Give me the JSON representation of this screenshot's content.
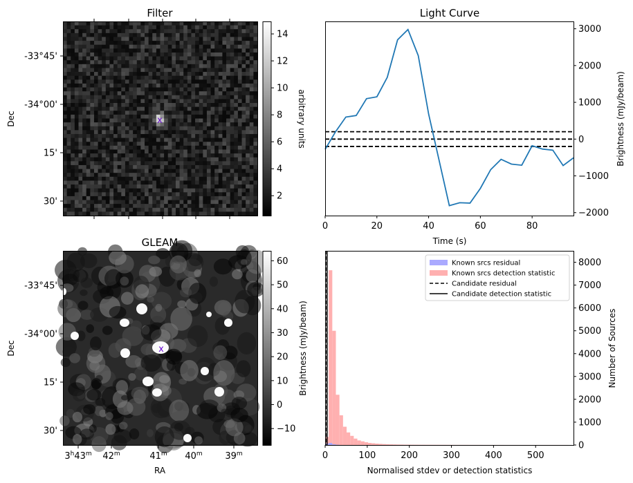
{
  "filter_panel": {
    "title": "Filter",
    "ylabel": "Dec",
    "ytick_labels": [
      "-33°45'",
      "-34°00'",
      "15'",
      "30'"
    ],
    "colorbar": {
      "label": "arbitrary units",
      "ticks": [
        "2",
        "4",
        "6",
        "8",
        "10",
        "12",
        "14"
      ],
      "range": [
        0.5,
        14.9
      ]
    },
    "marker": "x"
  },
  "gleam_panel": {
    "title": "GLEAM",
    "ylabel": "Dec",
    "xlabel": "RA",
    "ytick_labels": [
      "-33°45'",
      "-34°00'",
      "15'",
      "30'"
    ],
    "xtick_labels": [
      {
        "h": "3",
        "hs": "h",
        "m": "43",
        "ms": "m"
      },
      {
        "h": "",
        "hs": "",
        "m": "42",
        "ms": "m"
      },
      {
        "h": "",
        "hs": "",
        "m": "41",
        "ms": "m"
      },
      {
        "h": "",
        "hs": "",
        "m": "40",
        "ms": "m"
      },
      {
        "h": "",
        "hs": "",
        "m": "39",
        "ms": "m"
      }
    ],
    "colorbar": {
      "label": "Brightness (mJy/beam)",
      "ticks": [
        "−10",
        "0",
        "10",
        "20",
        "30",
        "40",
        "50",
        "60"
      ],
      "range": [
        -17,
        64
      ]
    },
    "marker": "x"
  },
  "chart_data": [
    {
      "type": "line",
      "title": "Light Curve",
      "xlabel": "Time (s)",
      "ylabel": "Brightness (mJy/beam)",
      "xlim": [
        0,
        96
      ],
      "ylim": [
        -2080,
        3200
      ],
      "xticks": [
        0,
        20,
        40,
        60,
        80
      ],
      "yticks": [
        3000,
        2000,
        1000,
        0,
        -1000,
        -2000
      ],
      "ytick_labels": [
        "3000",
        "2000",
        "1000",
        "0",
        "−1000",
        "−2000"
      ],
      "series": [
        {
          "x": [
            0,
            4,
            8,
            12,
            16,
            20,
            24,
            28,
            32,
            36,
            40,
            44,
            48,
            52,
            56,
            60,
            64,
            68,
            72,
            76,
            80,
            84,
            88,
            92,
            96
          ],
          "y": [
            -280,
            200,
            600,
            640,
            1100,
            1150,
            1680,
            2700,
            2980,
            2270,
            680,
            -560,
            -1810,
            -1730,
            -1740,
            -1340,
            -830,
            -550,
            -680,
            -710,
            -180,
            -270,
            -300,
            -720,
            -510
          ],
          "color": "#1f77b4"
        }
      ],
      "hlines": [
        200,
        0,
        -200
      ],
      "hline_style": "dashed black"
    },
    {
      "type": "histogram",
      "xlabel": "Normalised stdev or detection statistics",
      "ylabel_left": "Brightness (mJy/beam)",
      "ylabel_right": "Number of Sources",
      "xlim": [
        0,
        590
      ],
      "ylim": [
        0,
        8500
      ],
      "xticks": [
        0,
        100,
        200,
        300,
        400,
        500
      ],
      "yticks": [
        0,
        1000,
        2000,
        3000,
        4000,
        5000,
        6000,
        7000,
        8000
      ],
      "bin_width": 8.5,
      "series": [
        {
          "name": "Known srcs residual",
          "color": "#aaaaff",
          "bins_start": 0,
          "counts": [
            60,
            90,
            30,
            10
          ]
        },
        {
          "name": "Known srcs detection statistic",
          "color": "#ffb0b0",
          "bins_start": 0,
          "counts": [
            350,
            7650,
            5000,
            2200,
            1300,
            800,
            550,
            400,
            280,
            200,
            160,
            120,
            90,
            75,
            60,
            50,
            40,
            32,
            28,
            24,
            20,
            18,
            15,
            14,
            12,
            11,
            10,
            10,
            9,
            9,
            8,
            8,
            7,
            7,
            6,
            6,
            5,
            5,
            5,
            5,
            4,
            4,
            4,
            4,
            3,
            3,
            3,
            3,
            3,
            3,
            2,
            2,
            2,
            2,
            2,
            2,
            2,
            2,
            2,
            2,
            2,
            2,
            2,
            2,
            2,
            2,
            2,
            2
          ]
        }
      ],
      "vlines": [
        {
          "name": "Candidate residual",
          "x": 3.5,
          "style": "dashed"
        },
        {
          "name": "Candidate detection statistic",
          "x": 4.5,
          "style": "solid"
        }
      ],
      "legend_placement": "top-right"
    }
  ]
}
